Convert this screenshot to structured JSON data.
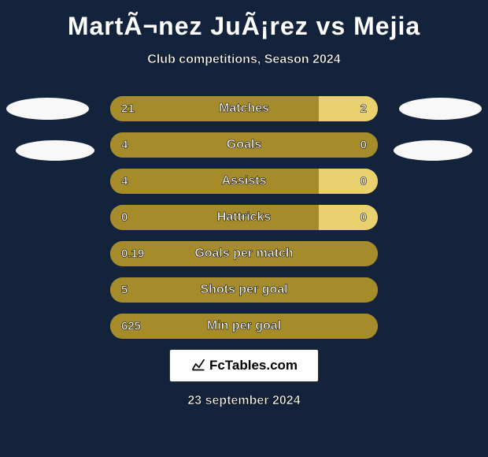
{
  "title": "MartÃ¬nez JuÃ¡rez vs Mejia",
  "subtitle": "Club competitions, Season 2024",
  "colors": {
    "background": "#14233c",
    "bar_left": "#a58b2a",
    "bar_right": "#e9d16f",
    "ellipse": "#f8f8f8",
    "text": "#ffffff"
  },
  "bars": [
    {
      "label": "Matches",
      "left": "21",
      "right": "2",
      "left_pct": 78,
      "right_pct": 22
    },
    {
      "label": "Goals",
      "left": "4",
      "right": "0",
      "left_pct": 100,
      "right_pct": 0
    },
    {
      "label": "Assists",
      "left": "4",
      "right": "0",
      "left_pct": 78,
      "right_pct": 22
    },
    {
      "label": "Hattricks",
      "left": "0",
      "right": "0",
      "left_pct": 78,
      "right_pct": 22
    },
    {
      "label": "Goals per match",
      "left": "0.19",
      "right": "",
      "left_pct": 100,
      "right_pct": 0
    },
    {
      "label": "Shots per goal",
      "left": "5",
      "right": "",
      "left_pct": 100,
      "right_pct": 0
    },
    {
      "label": "Min per goal",
      "left": "625",
      "right": "",
      "left_pct": 100,
      "right_pct": 0
    }
  ],
  "logo_text": "FcTables.com",
  "date": "23 september 2024"
}
